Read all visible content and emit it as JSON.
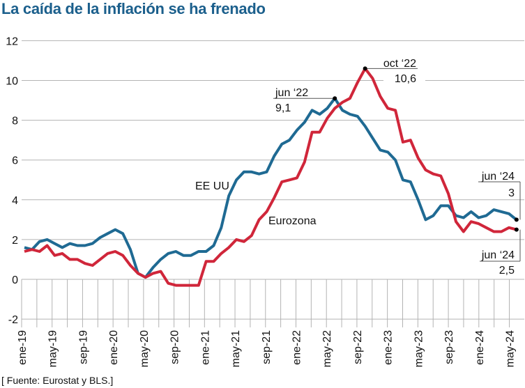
{
  "title": "La caída de la inflación se ha frenado",
  "source": "[ Fuente: Eurostat y BLS.]",
  "colors": {
    "us": "#1f6a93",
    "ez": "#d0263a",
    "title": "#1b5f8c",
    "grid": "#b3b3b3"
  },
  "chart_data": {
    "type": "line",
    "title": "La caída de la inflación se ha frenado",
    "xlabel": "",
    "ylabel": "",
    "ylim": [
      -2,
      12
    ],
    "yticks": [
      "-2",
      "0",
      "2",
      "4",
      "6",
      "8",
      "10",
      "12"
    ],
    "xtick_labels": [
      "ene-19",
      "may-19",
      "sep-19",
      "ene-20",
      "may-20",
      "sep-20",
      "ene-21",
      "may-21",
      "sep-21",
      "ene-22",
      "may-22",
      "sep-22",
      "ene-23",
      "may-23",
      "sep-23",
      "ene-24",
      "may-24"
    ],
    "x_range": [
      "ene-19",
      "jun-24"
    ],
    "grid": true,
    "series": [
      {
        "name": "EE UU",
        "values": [
          1.6,
          1.5,
          1.9,
          2.0,
          1.8,
          1.6,
          1.8,
          1.7,
          1.7,
          1.8,
          2.1,
          2.3,
          2.5,
          2.3,
          1.5,
          0.3,
          0.1,
          0.6,
          1.0,
          1.3,
          1.4,
          1.2,
          1.2,
          1.4,
          1.4,
          1.7,
          2.6,
          4.2,
          5.0,
          5.4,
          5.4,
          5.3,
          5.4,
          6.2,
          6.8,
          7.0,
          7.5,
          7.9,
          8.5,
          8.3,
          8.6,
          9.1,
          8.5,
          8.3,
          8.2,
          7.7,
          7.1,
          6.5,
          6.4,
          6.0,
          5.0,
          4.9,
          4.0,
          3.0,
          3.2,
          3.7,
          3.7,
          3.2,
          3.1,
          3.4,
          3.1,
          3.2,
          3.5,
          3.4,
          3.3,
          3.0
        ]
      },
      {
        "name": "Eurozona",
        "values": [
          1.4,
          1.5,
          1.4,
          1.7,
          1.2,
          1.3,
          1.0,
          1.0,
          0.8,
          0.7,
          1.0,
          1.3,
          1.4,
          1.2,
          0.7,
          0.3,
          0.1,
          0.3,
          0.4,
          -0.2,
          -0.3,
          -0.3,
          -0.3,
          -0.3,
          0.9,
          0.9,
          1.3,
          1.6,
          2.0,
          1.9,
          2.2,
          3.0,
          3.4,
          4.1,
          4.9,
          5.0,
          5.1,
          5.9,
          7.4,
          7.4,
          8.1,
          8.6,
          8.9,
          9.1,
          9.9,
          10.6,
          10.1,
          9.2,
          8.6,
          8.5,
          6.9,
          7.0,
          6.1,
          5.5,
          5.3,
          5.2,
          4.3,
          2.9,
          2.4,
          2.9,
          2.8,
          2.6,
          2.4,
          2.4,
          2.6,
          2.5
        ]
      }
    ],
    "annotations": [
      {
        "series": "EE UU",
        "label": "jun ‘22",
        "value": "9,1"
      },
      {
        "series": "Eurozona",
        "label": "oct ‘22",
        "value": "10,6"
      },
      {
        "series": "EE UU",
        "label": "jun ‘24",
        "value": "3"
      },
      {
        "series": "Eurozona",
        "label": "jun ‘24",
        "value": "2,5"
      }
    ]
  }
}
